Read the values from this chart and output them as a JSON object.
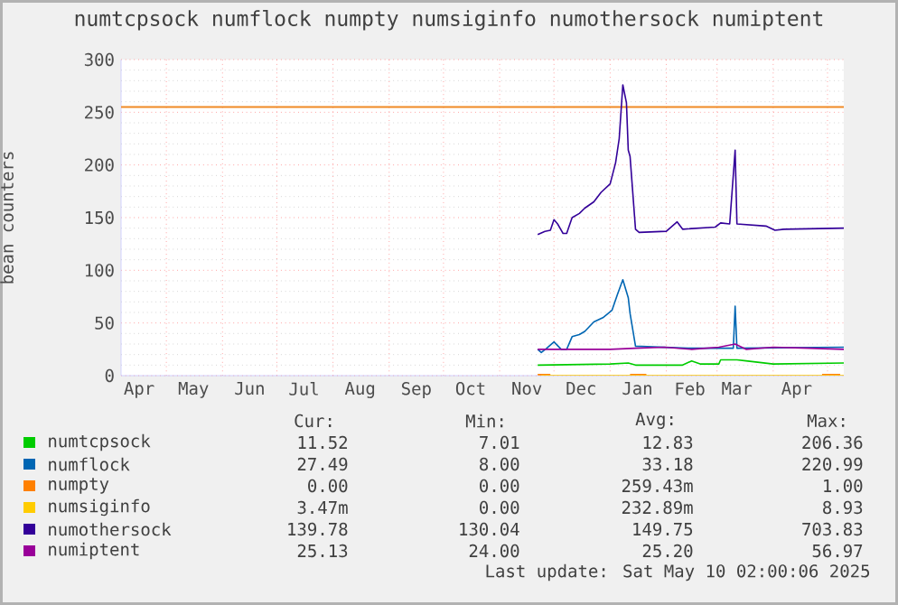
{
  "chart_data": {
    "type": "line",
    "title": "numtcpsock numflock numpty numsiginfo numothersock numiptent",
    "ylabel": "bean counters",
    "xlim": [
      "2024-04-06",
      "2025-05-10"
    ],
    "xticks": [
      {
        "value": "2024-04-16",
        "label": "Apr"
      },
      {
        "value": "2024-05-01",
        "label": null
      },
      {
        "value": "2024-05-16",
        "label": "May"
      },
      {
        "value": "2024-06-01",
        "label": null
      },
      {
        "value": "2024-06-16",
        "label": "Jun"
      },
      {
        "value": "2024-07-01",
        "label": null
      },
      {
        "value": "2024-07-16",
        "label": "Jul"
      },
      {
        "value": "2024-08-01",
        "label": null
      },
      {
        "value": "2024-08-16",
        "label": "Aug"
      },
      {
        "value": "2024-09-01",
        "label": null
      },
      {
        "value": "2024-09-16",
        "label": "Sep"
      },
      {
        "value": "2024-10-01",
        "label": null
      },
      {
        "value": "2024-10-16",
        "label": "Oct"
      },
      {
        "value": "2024-11-01",
        "label": null
      },
      {
        "value": "2024-11-16",
        "label": "Nov"
      },
      {
        "value": "2024-12-01",
        "label": null
      },
      {
        "value": "2024-12-16",
        "label": "Dec"
      },
      {
        "value": "2025-01-01",
        "label": null
      },
      {
        "value": "2025-01-16",
        "label": "Jan"
      },
      {
        "value": "2025-02-01",
        "label": null
      },
      {
        "value": "2025-02-14",
        "label": "Feb"
      },
      {
        "value": "2025-03-01",
        "label": null
      },
      {
        "value": "2025-03-12",
        "label": "Mar"
      },
      {
        "value": "2025-04-01",
        "label": null
      },
      {
        "value": "2025-04-14",
        "label": "Apr"
      },
      {
        "value": "2025-05-01",
        "label": null
      }
    ],
    "ylim": [
      0,
      300
    ],
    "yticks": [
      0,
      50,
      100,
      150,
      200,
      250,
      300
    ],
    "grid": true,
    "legend": "bottom",
    "ref_lines": [
      {
        "axis": "y",
        "value": 255,
        "color": "#f08a24"
      }
    ],
    "series": [
      {
        "name": "numtcpsock",
        "color": "#00cc00",
        "x": [
          "2024-11-22",
          "2025-01-01",
          "2025-01-11",
          "2025-01-15",
          "2025-02-10",
          "2025-02-15",
          "2025-02-20",
          "2025-03-02",
          "2025-03-03",
          "2025-03-12",
          "2025-03-17",
          "2025-04-01",
          "2025-05-10"
        ],
        "values": [
          10,
          11,
          12,
          10,
          10,
          14,
          11,
          11,
          15,
          15,
          14,
          11,
          12
        ]
      },
      {
        "name": "numflock",
        "color": "#0066b3",
        "x": [
          "2024-11-22",
          "2024-11-24",
          "2024-11-27",
          "2024-12-01",
          "2024-12-05",
          "2024-12-08",
          "2024-12-11",
          "2024-12-15",
          "2024-12-18",
          "2024-12-23",
          "2024-12-28",
          "2025-01-02",
          "2025-01-05",
          "2025-01-08",
          "2025-01-11",
          "2025-01-12",
          "2025-01-15",
          "2025-02-13",
          "2025-03-10",
          "2025-03-11",
          "2025-03-12",
          "2025-05-10"
        ],
        "values": [
          25,
          22,
          26,
          32,
          25,
          25,
          37,
          39,
          42,
          51,
          55,
          62,
          77,
          91,
          74,
          59,
          28,
          26,
          26,
          66,
          26,
          27
        ]
      },
      {
        "name": "numpty",
        "color": "#ff8000",
        "x": [
          "2024-11-22",
          "2024-11-29",
          "2024-12-05",
          "2025-01-12",
          "2025-01-21",
          "2025-02-01",
          "2025-04-28",
          "2025-05-08"
        ],
        "values": [
          1,
          1,
          null,
          1,
          1,
          null,
          1,
          1
        ]
      },
      {
        "name": "numsiginfo",
        "color": "#ffcc00",
        "x": [
          "2024-11-24",
          "2025-05-10"
        ],
        "values": [
          0,
          0
        ]
      },
      {
        "name": "numothersock",
        "color": "#330099",
        "x": [
          "2024-11-22",
          "2024-11-26",
          "2024-11-29",
          "2024-12-01",
          "2024-12-03",
          "2024-12-06",
          "2024-12-08",
          "2024-12-11",
          "2024-12-15",
          "2024-12-18",
          "2024-12-23",
          "2024-12-27",
          "2025-01-01",
          "2025-01-04",
          "2025-01-06",
          "2025-01-08",
          "2025-01-10",
          "2025-01-11",
          "2025-01-12",
          "2025-01-15",
          "2025-01-17",
          "2025-02-01",
          "2025-02-07",
          "2025-02-10",
          "2025-02-28",
          "2025-03-03",
          "2025-03-08",
          "2025-03-11",
          "2025-03-12",
          "2025-03-28",
          "2025-04-02",
          "2025-04-07",
          "2025-05-10"
        ],
        "values": [
          134,
          137,
          138,
          148,
          144,
          135,
          135,
          150,
          154,
          159,
          165,
          174,
          182,
          202,
          225,
          276,
          259,
          214,
          208,
          139,
          136,
          137,
          146,
          139,
          141,
          145,
          144,
          214,
          144,
          142,
          138,
          139,
          140
        ]
      },
      {
        "name": "numiptent",
        "color": "#990099",
        "x": [
          "2024-11-22",
          "2025-01-01",
          "2025-01-15",
          "2025-01-31",
          "2025-02-15",
          "2025-03-02",
          "2025-03-11",
          "2025-03-17",
          "2025-04-01",
          "2025-04-21",
          "2025-05-10"
        ],
        "values": [
          25,
          25,
          26,
          27,
          25,
          27,
          30,
          25,
          27,
          26,
          25
        ]
      }
    ],
    "annotations": [
      "Cur:",
      "Min:",
      "Avg:",
      "Max:",
      "11.52",
      "7.01",
      "12.83",
      "206.36",
      "27.49",
      "8.00",
      "33.18",
      "220.99",
      "0.00",
      "0.00",
      "259.43m",
      "1.00",
      "3.47m",
      "0.00",
      "232.89m",
      "8.93",
      "139.78",
      "130.04",
      "149.75",
      "703.83",
      "25.13",
      "24.00",
      "25.20",
      "56.97",
      "Last update: Sat May 10 02:00:06 2025"
    ]
  }
}
